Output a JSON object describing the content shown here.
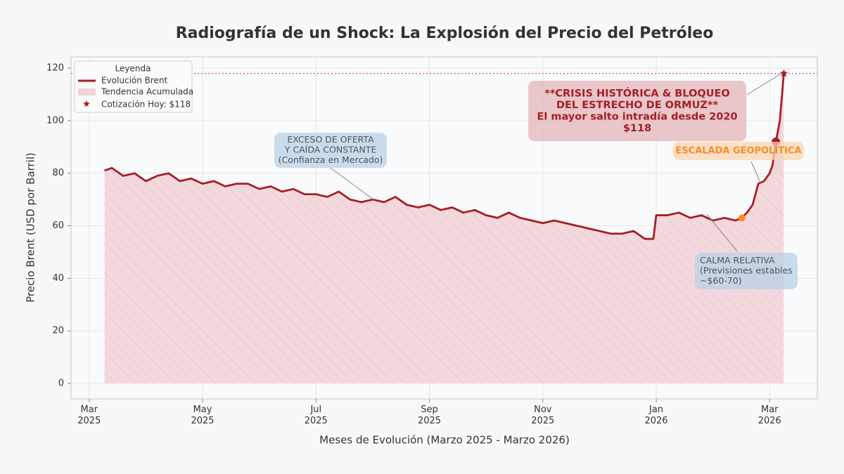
{
  "chart_data": {
    "type": "line",
    "title": "Radiografía de un Shock: La Explosión del Precio del Petróleo",
    "x_label": "Meses de Evolución (Marzo 2025 - Marzo 2026)",
    "y_label": "Precio Brent (USD por Barril)",
    "x": [
      0.27,
      0.4,
      0.6,
      0.8,
      1.0,
      1.2,
      1.4,
      1.6,
      1.8,
      2.0,
      2.2,
      2.4,
      2.6,
      2.8,
      3.0,
      3.2,
      3.4,
      3.6,
      3.8,
      4.0,
      4.2,
      4.4,
      4.6,
      4.8,
      5.0,
      5.2,
      5.4,
      5.6,
      5.8,
      6.0,
      6.2,
      6.4,
      6.6,
      6.8,
      7.0,
      7.2,
      7.4,
      7.6,
      7.8,
      8.0,
      8.2,
      8.4,
      8.6,
      8.8,
      9.0,
      9.2,
      9.4,
      9.6,
      9.8,
      9.95,
      10.0,
      10.2,
      10.4,
      10.6,
      10.8,
      11.0,
      11.2,
      11.4,
      11.51,
      11.6,
      11.7,
      11.8,
      11.9,
      12.0,
      12.05,
      12.11,
      12.18,
      12.25
    ],
    "series": [
      {
        "name": "Evolución Brent",
        "color": "#a51f24",
        "values": [
          81,
          82,
          79,
          80,
          77,
          79,
          80,
          77,
          78,
          76,
          77,
          75,
          76,
          76,
          74,
          75,
          73,
          74,
          72,
          72,
          71,
          73,
          70,
          69,
          70,
          69,
          71,
          68,
          67,
          68,
          66,
          67,
          65,
          66,
          64,
          63,
          65,
          63,
          62,
          61,
          62,
          61,
          60,
          59,
          58,
          57,
          57,
          58,
          55,
          55,
          64,
          64,
          65,
          63,
          64,
          62,
          63,
          62,
          63,
          65,
          68,
          76,
          77,
          80,
          83,
          92,
          100,
          118
        ]
      }
    ],
    "area": {
      "name": "Tendencia Acumulada",
      "color": "#f2d3d7"
    },
    "current": {
      "name": "Cotización Hoy: $118",
      "x": 12.25,
      "y": 118,
      "color": "#a51f24"
    },
    "highlight_points": [
      {
        "x": 11.51,
        "y": 63,
        "color": "#ff8c1a"
      },
      {
        "x": 12.11,
        "y": 92,
        "color": "#a51f24"
      }
    ],
    "hline": 118,
    "legend_title": "Leyenda",
    "legend": "upper left",
    "xlim": [
      -0.32,
      12.84
    ],
    "ylim": [
      -5.9,
      124.3
    ],
    "xticks": [
      {
        "value": 0,
        "label": "Mar\n2025"
      },
      {
        "value": 2,
        "label": "May\n2025"
      },
      {
        "value": 4,
        "label": "Jul\n2025"
      },
      {
        "value": 6,
        "label": "Sep\n2025"
      },
      {
        "value": 8,
        "label": "Nov\n2025"
      },
      {
        "value": 10,
        "label": "Jan\n2026"
      },
      {
        "value": 12,
        "label": "Mar\n2026"
      }
    ],
    "yticks": [
      0,
      20,
      40,
      60,
      80,
      100,
      120
    ],
    "grid": true,
    "annotations": [
      {
        "lines": [
          "EXCESO DE OFERTA",
          "Y CAÍDA CONSTANTE",
          "(Confianza en Mercado)"
        ],
        "color": "#555555",
        "fill": "#b7d2e8"
      },
      {
        "lines": [
          "CALMA RELATIVA",
          "(Previsiones estables",
          "~$60-70)"
        ],
        "color": "#555555",
        "fill": "#b7d2e8"
      },
      {
        "lines": [
          "ESCALADA GEOPOLÍTICA"
        ],
        "color": "#f28e2b",
        "fill": "#fbd6b3"
      },
      {
        "lines": [
          "**CRISIS HISTÓRICA & BLOQUEO",
          "DEL ESTRECHO DE ORMUZ**",
          "El mayor salto intradía desde 2020",
          "$118"
        ],
        "color": "#a51f24",
        "fill": "#e2b4ba"
      }
    ]
  }
}
